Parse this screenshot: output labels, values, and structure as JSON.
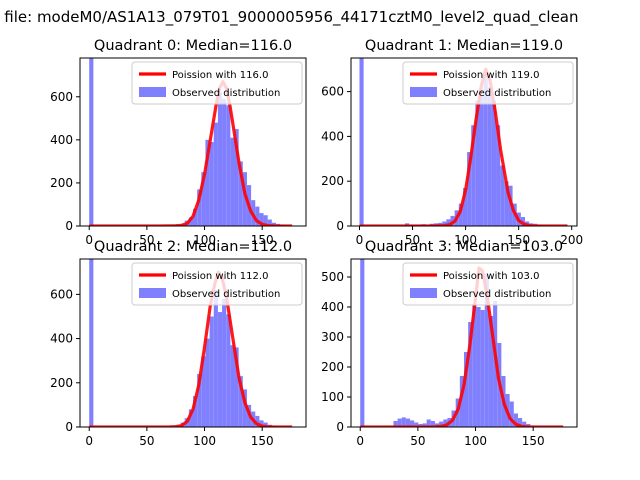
{
  "figure": {
    "suptitle": "n file: modeM0/AS1A13_079T01_9000005956_44171cztM0_level2_quad_clean"
  },
  "colors": {
    "histogram": "#8080ff",
    "poisson": "#ff0000"
  },
  "chart_data": [
    {
      "type": "bar",
      "title": "Quadrant 0: Median=116.0",
      "xlim": [
        -8,
        188
      ],
      "ylim": [
        0,
        780
      ],
      "xticks": [
        0,
        50,
        100,
        150
      ],
      "yticks": [
        0,
        200,
        400,
        600
      ],
      "legend": [
        "Poission with 116.0",
        "Observed distribution"
      ],
      "legend_loc": "upper right",
      "hist": {
        "bin_width": 3.6,
        "x": [
          0,
          3.6,
          7.2,
          10.8,
          14.4,
          18,
          21.6,
          25.2,
          28.8,
          32.4,
          36,
          39.6,
          43.2,
          46.8,
          50.4,
          54,
          57.6,
          61.2,
          64.8,
          68.4,
          72,
          75.6,
          79.2,
          82.8,
          86.4,
          90,
          93.6,
          97.2,
          100.8,
          104.4,
          108,
          111.6,
          115.2,
          118.8,
          122.4,
          126,
          129.6,
          133.2,
          136.8,
          140.4,
          144,
          147.6,
          151.2,
          154.8,
          158.4,
          162,
          165.6,
          169.2,
          172.8,
          176.4
        ],
        "values": [
          780,
          0,
          0,
          0,
          0,
          0,
          0,
          0,
          0,
          0,
          0,
          0,
          0,
          0,
          0,
          0,
          0,
          0,
          0,
          0,
          3,
          5,
          10,
          25,
          40,
          80,
          170,
          250,
          400,
          390,
          480,
          620,
          590,
          560,
          410,
          450,
          300,
          250,
          190,
          120,
          90,
          60,
          50,
          30,
          15,
          10,
          5,
          3,
          1,
          0
        ]
      },
      "poisson": {
        "mean": 116.0,
        "x": [
          0,
          60,
          70,
          75,
          80,
          85,
          90,
          95,
          100,
          105,
          110,
          113,
          116,
          119,
          122,
          125,
          130,
          135,
          140,
          145,
          150,
          155,
          160,
          165,
          170,
          176
        ],
        "y": [
          0,
          0,
          0.5,
          1,
          3,
          12,
          45,
          120,
          240,
          400,
          560,
          640,
          670,
          640,
          560,
          460,
          290,
          150,
          70,
          25,
          8,
          2,
          0.5,
          0,
          0,
          0
        ]
      }
    },
    {
      "type": "bar",
      "title": "Quadrant 1: Median=119.0",
      "xlim": [
        -8,
        205
      ],
      "ylim": [
        0,
        750
      ],
      "xticks": [
        0,
        50,
        100,
        150,
        200
      ],
      "yticks": [
        0,
        200,
        400,
        600
      ],
      "legend": [
        "Poission with 119.0",
        "Observed distribution"
      ],
      "legend_loc": "upper right",
      "hist": {
        "bin_width": 3.9,
        "x": [
          0,
          3.9,
          7.8,
          11.7,
          15.6,
          19.5,
          23.4,
          27.3,
          31.2,
          35.1,
          39,
          42.9,
          46.8,
          50.7,
          54.6,
          58.5,
          62.4,
          66.3,
          70.2,
          74.1,
          78,
          81.9,
          85.8,
          89.7,
          93.6,
          97.5,
          101.4,
          105.3,
          109.2,
          113.1,
          117,
          120.9,
          124.8,
          128.7,
          132.6,
          136.5,
          140.4,
          144.3,
          148.2,
          152.1,
          156,
          159.9,
          163.8,
          167.7,
          171.6,
          175.5,
          179.4,
          183.3,
          187.2,
          191.1
        ],
        "values": [
          750,
          0,
          0,
          0,
          0,
          0,
          0,
          0,
          0,
          0,
          0,
          12,
          5,
          4,
          6,
          8,
          5,
          10,
          12,
          14,
          20,
          30,
          45,
          70,
          100,
          170,
          330,
          450,
          560,
          580,
          680,
          620,
          560,
          450,
          270,
          200,
          180,
          100,
          60,
          40,
          20,
          12,
          10,
          5,
          3,
          2,
          1,
          0,
          0,
          0
        ]
      },
      "poisson": {
        "mean": 119.0,
        "x": [
          0,
          60,
          70,
          80,
          85,
          90,
          95,
          100,
          105,
          110,
          115,
          119,
          123,
          128,
          133,
          140,
          145,
          150,
          155,
          160,
          165,
          170,
          180,
          196
        ],
        "y": [
          0,
          0,
          0,
          2,
          6,
          22,
          65,
          160,
          310,
          480,
          630,
          700,
          650,
          510,
          340,
          150,
          70,
          25,
          8,
          2,
          0.5,
          0,
          0,
          0
        ]
      }
    },
    {
      "type": "bar",
      "title": "Quadrant 2: Median=112.0",
      "xlim": [
        -8,
        188
      ],
      "ylim": [
        0,
        760
      ],
      "xticks": [
        0,
        50,
        100,
        150
      ],
      "yticks": [
        0,
        200,
        400,
        600
      ],
      "legend": [
        "Poission with 112.0",
        "Observed distribution"
      ],
      "legend_loc": "upper right",
      "hist": {
        "bin_width": 3.6,
        "x": [
          0,
          3.6,
          7.2,
          10.8,
          14.4,
          18,
          21.6,
          25.2,
          28.8,
          32.4,
          36,
          39.6,
          43.2,
          46.8,
          50.4,
          54,
          57.6,
          61.2,
          64.8,
          68.4,
          72,
          75.6,
          79.2,
          82.8,
          86.4,
          90,
          93.6,
          97.2,
          100.8,
          104.4,
          108,
          111.6,
          115.2,
          118.8,
          122.4,
          126,
          129.6,
          133.2,
          136.8,
          140.4,
          144,
          147.6,
          151.2,
          154.8,
          158.4,
          162,
          165.6,
          169.2,
          172.8,
          176.4
        ],
        "values": [
          760,
          0,
          0,
          0,
          0,
          0,
          0,
          0,
          0,
          0,
          0,
          0,
          0,
          0,
          0,
          0,
          0,
          0,
          0,
          0,
          3,
          8,
          20,
          40,
          80,
          140,
          240,
          320,
          400,
          500,
          620,
          520,
          580,
          510,
          370,
          360,
          230,
          170,
          100,
          70,
          50,
          30,
          20,
          10,
          5,
          3,
          2,
          1,
          0,
          0
        ]
      },
      "poisson": {
        "mean": 112.0,
        "x": [
          0,
          60,
          70,
          75,
          80,
          85,
          90,
          95,
          100,
          105,
          109,
          112,
          115,
          119,
          124,
          130,
          135,
          140,
          145,
          150,
          155,
          160,
          170,
          176
        ],
        "y": [
          0,
          0,
          0.5,
          2,
          6,
          25,
          80,
          190,
          360,
          550,
          650,
          700,
          680,
          590,
          420,
          220,
          110,
          45,
          15,
          4,
          1,
          0,
          0,
          0
        ]
      }
    },
    {
      "type": "bar",
      "title": "Quadrant 3: Median=103.0",
      "xlim": [
        -8,
        188
      ],
      "ylim": [
        0,
        560
      ],
      "xticks": [
        0,
        50,
        100,
        150
      ],
      "yticks": [
        0,
        100,
        200,
        300,
        400,
        500
      ],
      "legend": [
        "Poission with 103.0",
        "Observed distribution"
      ],
      "legend_loc": "upper right",
      "hist": {
        "bin_width": 3.6,
        "x": [
          0,
          3.6,
          7.2,
          10.8,
          14.4,
          18,
          21.6,
          25.2,
          28.8,
          32.4,
          36,
          39.6,
          43.2,
          46.8,
          50.4,
          54,
          57.6,
          61.2,
          64.8,
          68.4,
          72,
          75.6,
          79.2,
          82.8,
          86.4,
          90,
          93.6,
          97.2,
          100.8,
          104.4,
          108,
          111.6,
          115.2,
          118.8,
          122.4,
          126,
          129.6,
          133.2,
          136.8,
          140.4,
          144,
          147.6,
          151.2,
          154.8,
          158.4,
          162,
          165.6,
          169.2,
          172.8,
          176.4
        ],
        "values": [
          560,
          0,
          0,
          0,
          0,
          0,
          0,
          2,
          20,
          28,
          32,
          28,
          22,
          15,
          10,
          12,
          25,
          20,
          12,
          18,
          25,
          30,
          55,
          95,
          170,
          250,
          350,
          410,
          400,
          390,
          510,
          370,
          420,
          280,
          170,
          110,
          85,
          45,
          30,
          18,
          10,
          5,
          2,
          1,
          0,
          0,
          0,
          0,
          0,
          0
        ]
      },
      "poisson": {
        "mean": 103.0,
        "x": [
          0,
          55,
          65,
          70,
          75,
          80,
          85,
          90,
          95,
          100,
          103,
          106,
          110,
          115,
          120,
          125,
          130,
          135,
          140,
          145,
          150,
          160,
          176
        ],
        "y": [
          0,
          0,
          0.5,
          2,
          7,
          22,
          60,
          140,
          270,
          430,
          530,
          520,
          440,
          300,
          160,
          75,
          28,
          9,
          2,
          0.5,
          0,
          0,
          0
        ]
      }
    }
  ]
}
